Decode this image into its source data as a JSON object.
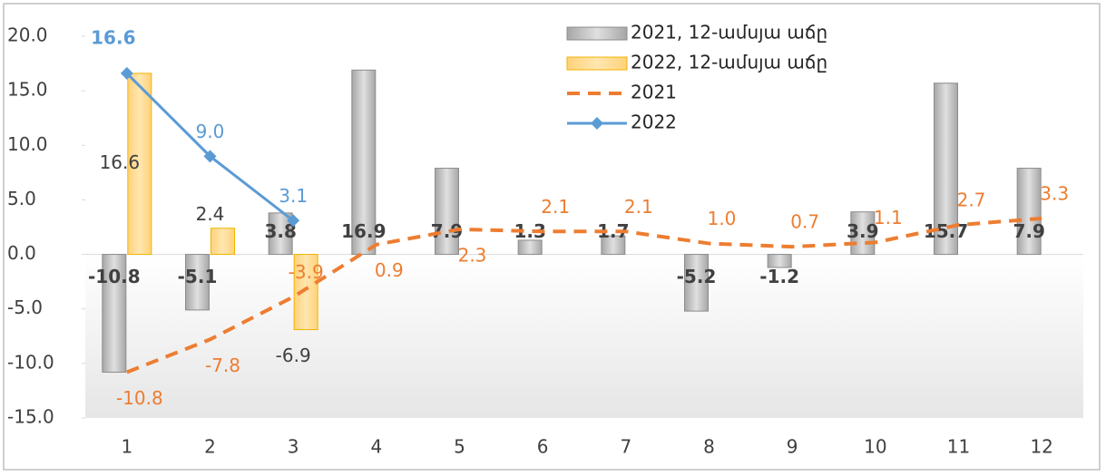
{
  "chart_data": {
    "type": "bar-line",
    "categories": [
      "1",
      "2",
      "3",
      "4",
      "5",
      "6",
      "7",
      "8",
      "9",
      "10",
      "11",
      "12"
    ],
    "ylim": [
      -15,
      20
    ],
    "yticks": [
      {
        "value": -15,
        "label": "-15.0"
      },
      {
        "value": -10,
        "label": "-10.0"
      },
      {
        "value": -5,
        "label": "-5.0"
      },
      {
        "value": 0,
        "label": "0.0"
      },
      {
        "value": 5,
        "label": "5.0"
      },
      {
        "value": 10,
        "label": "10.0"
      },
      {
        "value": 15,
        "label": "15.0"
      },
      {
        "value": 20,
        "label": "20.0"
      }
    ],
    "grid": false,
    "legend": "top-right",
    "series": [
      {
        "name": "2021, 12-ամսյա աճը",
        "kind": "bar",
        "color": "#bfbfbf",
        "values": [
          -10.8,
          -5.1,
          3.8,
          16.9,
          7.9,
          1.3,
          1.7,
          -5.2,
          -1.2,
          3.9,
          15.7,
          7.9
        ],
        "value_labels": [
          "-10.8",
          "-5.1",
          "3.8",
          "16.9",
          "7.9",
          "1.3",
          "1.7",
          "-5.2",
          "-1.2",
          "3.9",
          "15.7",
          "7.9"
        ]
      },
      {
        "name": "2022, 12-ամսյա աճը",
        "kind": "bar",
        "color": "#ffd780",
        "values": [
          16.6,
          2.4,
          -6.9,
          null,
          null,
          null,
          null,
          null,
          null,
          null,
          null,
          null
        ],
        "value_labels": [
          "16.6",
          "2.4",
          "-6.9",
          null,
          null,
          null,
          null,
          null,
          null,
          null,
          null,
          null
        ]
      },
      {
        "name": "2021",
        "kind": "line",
        "color": "#ed7d31",
        "values": [
          -10.8,
          -7.8,
          -3.9,
          0.9,
          2.3,
          2.1,
          2.1,
          1.0,
          0.7,
          1.1,
          2.7,
          3.3
        ],
        "value_labels": [
          "-10.8",
          "-7.8",
          "-3.9",
          "0.9",
          "2.3",
          "2.1",
          "2.1",
          "1.0",
          "0.7",
          "1.1",
          "2.7",
          "3.3"
        ]
      },
      {
        "name": "2022",
        "kind": "line",
        "color": "#5b9bd5",
        "values": [
          16.6,
          9.0,
          3.1,
          null,
          null,
          null,
          null,
          null,
          null,
          null,
          null,
          null
        ],
        "value_labels": [
          "16.6",
          "9.0",
          "3.1",
          null,
          null,
          null,
          null,
          null,
          null,
          null,
          null,
          null
        ]
      }
    ]
  }
}
